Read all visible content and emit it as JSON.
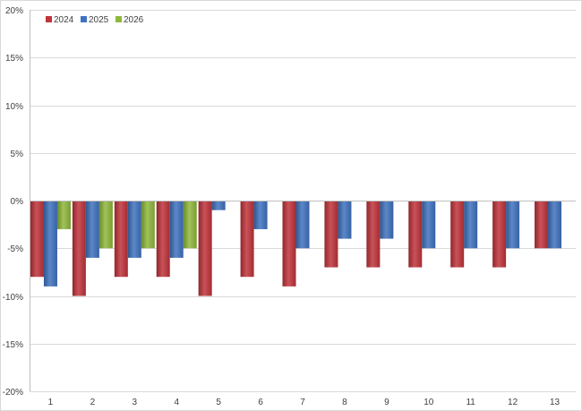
{
  "chart_data": {
    "type": "bar",
    "categories": [
      "1",
      "2",
      "3",
      "4",
      "5",
      "6",
      "7",
      "8",
      "9",
      "10",
      "11",
      "12",
      "13"
    ],
    "series": [
      {
        "name": "2024",
        "color": "#c0343a",
        "values": [
          -8,
          -10,
          -8,
          -8,
          -10,
          -8,
          -9,
          -7,
          -7,
          -7,
          -7,
          -7,
          -5
        ]
      },
      {
        "name": "2025",
        "color": "#3f73c0",
        "values": [
          -9,
          -6,
          -6,
          -6,
          -1,
          -3,
          -5,
          -4,
          -4,
          -5,
          -5,
          -5,
          -5
        ]
      },
      {
        "name": "2026",
        "color": "#8fb83c",
        "values": [
          -3,
          -5,
          -5,
          -5,
          null,
          null,
          null,
          null,
          null,
          null,
          null,
          null,
          null
        ]
      }
    ],
    "ylim": [
      -20,
      20
    ],
    "yticks": [
      20,
      15,
      10,
      5,
      0,
      -5,
      -10,
      -15,
      -20
    ],
    "ytick_labels": [
      "20%",
      "15%",
      "10%",
      "5%",
      "0%",
      "-5%",
      "-10%",
      "-15%",
      "-20%"
    ],
    "grid": true,
    "legend_position": "top-left",
    "title": "",
    "xlabel": "",
    "ylabel": ""
  }
}
